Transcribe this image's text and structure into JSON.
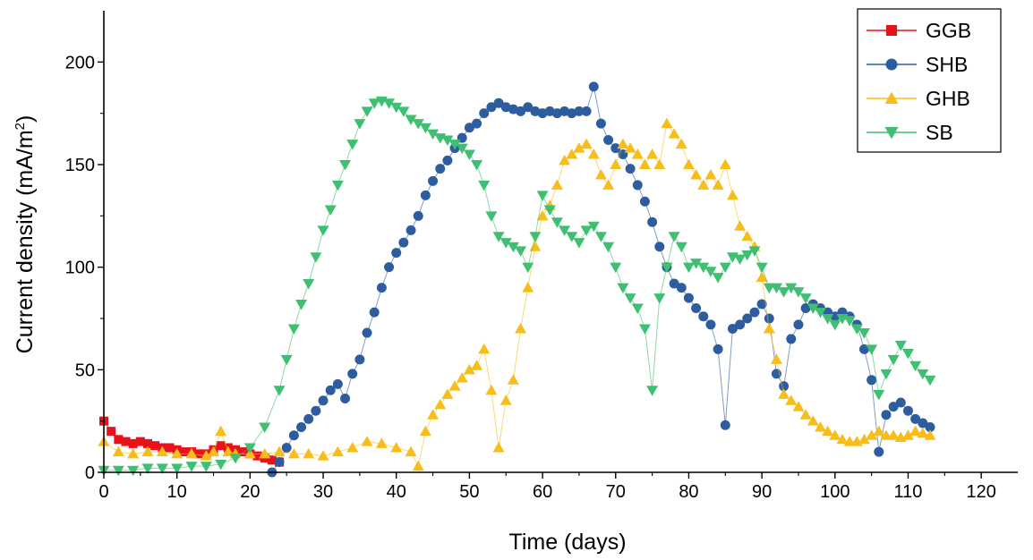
{
  "chart_data": {
    "type": "scatter",
    "title": "",
    "xlabel": "Time (days)",
    "ylabel": "Current density (mA/m",
    "ylabel_sup": "2",
    "ylabel_tail": ")",
    "xlim": [
      0,
      125
    ],
    "ylim": [
      0,
      225
    ],
    "x_ticks": [
      0,
      10,
      20,
      30,
      40,
      50,
      60,
      70,
      80,
      90,
      100,
      110,
      120
    ],
    "y_ticks": [
      0,
      50,
      100,
      150,
      200
    ],
    "grid": false,
    "legend_position": "top-right",
    "series": [
      {
        "name": "GGB",
        "color": "#e8121a",
        "marker": "square",
        "x": [
          0,
          1,
          2,
          3,
          4,
          5,
          6,
          7,
          8,
          9,
          10,
          11,
          12,
          13,
          14,
          15,
          16,
          17,
          18,
          19,
          20,
          21,
          22,
          23,
          24
        ],
        "y": [
          25,
          20,
          16,
          15,
          14,
          15,
          14,
          13,
          12,
          12,
          11,
          10,
          10,
          9,
          9,
          11,
          13,
          12,
          11,
          10,
          9,
          8,
          7,
          6,
          5
        ]
      },
      {
        "name": "SHB",
        "color": "#2e5d9f",
        "marker": "circle",
        "x": [
          23,
          24,
          25,
          26,
          27,
          28,
          29,
          30,
          31,
          32,
          33,
          34,
          35,
          36,
          37,
          38,
          39,
          40,
          41,
          42,
          43,
          44,
          45,
          46,
          47,
          48,
          49,
          50,
          51,
          52,
          53,
          54,
          55,
          56,
          57,
          58,
          59,
          60,
          61,
          62,
          63,
          64,
          65,
          66,
          67,
          68,
          69,
          70,
          71,
          72,
          73,
          74,
          75,
          76,
          77,
          78,
          79,
          80,
          81,
          82,
          83,
          84,
          85,
          86,
          87,
          88,
          89,
          90,
          91,
          92,
          93,
          94,
          95,
          96,
          97,
          98,
          99,
          100,
          101,
          102,
          103,
          104,
          105,
          106,
          107,
          108,
          109,
          110,
          111,
          112,
          113
        ],
        "y": [
          0,
          5,
          12,
          18,
          22,
          26,
          30,
          35,
          40,
          43,
          36,
          48,
          55,
          68,
          78,
          90,
          100,
          107,
          112,
          118,
          125,
          135,
          142,
          148,
          152,
          158,
          163,
          168,
          170,
          175,
          178,
          180,
          178,
          177,
          176,
          178,
          176,
          175,
          176,
          175,
          176,
          175,
          176,
          176,
          188,
          170,
          162,
          158,
          155,
          148,
          140,
          132,
          122,
          110,
          100,
          92,
          90,
          85,
          80,
          76,
          72,
          60,
          23,
          70,
          72,
          75,
          78,
          82,
          75,
          48,
          42,
          65,
          72,
          80,
          82,
          80,
          78,
          76,
          78,
          76,
          72,
          60,
          45,
          10,
          28,
          32,
          34,
          30,
          26,
          24,
          22
        ]
      },
      {
        "name": "GHB",
        "color": "#f7be1b",
        "marker": "triangle-up",
        "x": [
          0,
          2,
          4,
          6,
          8,
          10,
          12,
          14,
          15,
          16,
          17,
          18,
          20,
          22,
          24,
          26,
          28,
          30,
          32,
          34,
          36,
          38,
          40,
          42,
          43,
          44,
          45,
          46,
          47,
          48,
          49,
          50,
          51,
          52,
          53,
          54,
          55,
          56,
          57,
          58,
          59,
          60,
          61,
          62,
          63,
          64,
          65,
          66,
          67,
          68,
          69,
          70,
          71,
          72,
          73,
          74,
          75,
          76,
          77,
          78,
          79,
          80,
          81,
          82,
          83,
          84,
          85,
          86,
          87,
          88,
          89,
          90,
          91,
          92,
          93,
          94,
          95,
          96,
          97,
          98,
          99,
          100,
          101,
          102,
          103,
          104,
          105,
          106,
          107,
          108,
          109,
          110,
          111,
          112,
          113
        ],
        "y": [
          15,
          10,
          9,
          10,
          10,
          9,
          9,
          8,
          10,
          20,
          10,
          9,
          9,
          9,
          10,
          9,
          9,
          8,
          10,
          12,
          15,
          14,
          12,
          10,
          3,
          20,
          28,
          33,
          38,
          42,
          46,
          50,
          52,
          60,
          40,
          12,
          35,
          45,
          70,
          90,
          110,
          125,
          130,
          140,
          152,
          155,
          158,
          160,
          155,
          145,
          140,
          150,
          160,
          158,
          155,
          150,
          155,
          150,
          170,
          165,
          160,
          150,
          145,
          140,
          145,
          140,
          150,
          135,
          120,
          115,
          110,
          95,
          70,
          55,
          38,
          35,
          32,
          28,
          25,
          22,
          20,
          18,
          16,
          15,
          15,
          16,
          18,
          20,
          18,
          18,
          17,
          18,
          20,
          19,
          18
        ]
      },
      {
        "name": "SB",
        "color": "#3fbf71",
        "marker": "triangle-down",
        "x": [
          0,
          2,
          4,
          6,
          8,
          10,
          12,
          14,
          16,
          18,
          20,
          22,
          24,
          25,
          26,
          27,
          28,
          29,
          30,
          31,
          32,
          33,
          34,
          35,
          36,
          37,
          38,
          39,
          40,
          41,
          42,
          43,
          44,
          45,
          46,
          47,
          48,
          49,
          50,
          51,
          52,
          53,
          54,
          55,
          56,
          57,
          58,
          59,
          60,
          61,
          62,
          63,
          64,
          65,
          66,
          67,
          68,
          69,
          70,
          71,
          72,
          73,
          74,
          75,
          76,
          77,
          78,
          79,
          80,
          81,
          82,
          83,
          84,
          85,
          86,
          87,
          88,
          89,
          90,
          91,
          92,
          93,
          94,
          95,
          96,
          97,
          98,
          99,
          100,
          101,
          102,
          103,
          104,
          105,
          106,
          107,
          108,
          109,
          110,
          111,
          112,
          113
        ],
        "y": [
          1,
          1,
          1,
          2,
          2,
          2,
          3,
          3,
          4,
          7,
          12,
          22,
          40,
          55,
          70,
          82,
          92,
          105,
          118,
          128,
          140,
          150,
          160,
          170,
          176,
          180,
          181,
          180,
          178,
          176,
          172,
          170,
          168,
          165,
          163,
          162,
          160,
          158,
          155,
          150,
          140,
          125,
          115,
          112,
          110,
          108,
          100,
          115,
          135,
          128,
          122,
          118,
          115,
          112,
          118,
          120,
          115,
          110,
          100,
          90,
          85,
          80,
          70,
          40,
          85,
          100,
          115,
          110,
          100,
          102,
          100,
          98,
          95,
          100,
          105,
          104,
          106,
          108,
          100,
          90,
          90,
          88,
          90,
          88,
          85,
          80,
          78,
          75,
          72,
          75,
          74,
          70,
          68,
          60,
          38,
          48,
          55,
          62,
          58,
          52,
          48,
          45
        ]
      }
    ]
  }
}
